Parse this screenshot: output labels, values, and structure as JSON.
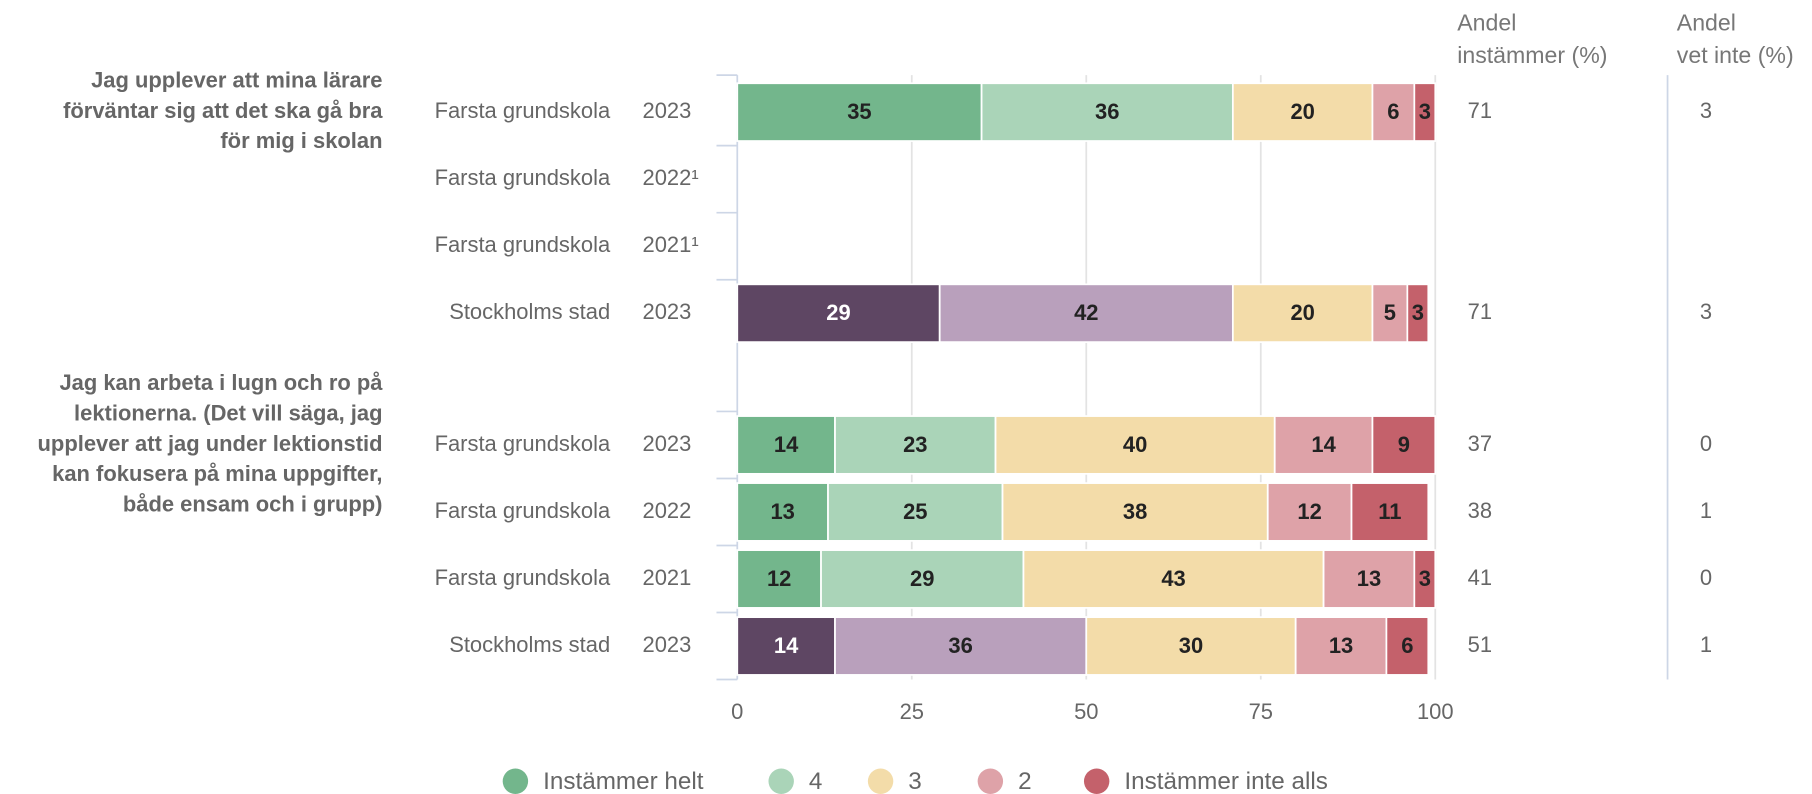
{
  "chart_data": {
    "type": "bar",
    "orientation": "horizontal",
    "stacked": true,
    "groups": [
      {
        "lines": [
          "Jag upplever att mina lärare",
          "förväntar sig att det ska gå bra",
          "för mig i skolan"
        ]
      },
      {
        "lines": [
          "Jag kan arbeta i lugn och ro på",
          "lektionerna. (Det vill säga, jag",
          "upplever att jag under lektionstid",
          "kan fokusera på mina uppgifter,",
          "både ensam och i grupp)"
        ]
      }
    ],
    "rows": [
      {
        "group": 0,
        "label": "Farsta grundskola",
        "year": "2023",
        "alt": false
      },
      {
        "group": 0,
        "label": "Farsta grundskola",
        "year": "2022¹",
        "alt": false
      },
      {
        "group": 0,
        "label": "Farsta grundskola",
        "year": "2021¹",
        "alt": false
      },
      {
        "group": 0,
        "label": "Stockholms stad",
        "year": "2023",
        "alt": true
      },
      {
        "group": 1,
        "label": "Farsta grundskola",
        "year": "2023",
        "alt": false
      },
      {
        "group": 1,
        "label": "Farsta grundskola",
        "year": "2022",
        "alt": false
      },
      {
        "group": 1,
        "label": "Farsta grundskola",
        "year": "2021",
        "alt": false
      },
      {
        "group": 1,
        "label": "Stockholms stad",
        "year": "2023",
        "alt": true
      }
    ],
    "series": [
      {
        "name": "Instämmer helt",
        "color": "#73b68c",
        "alt_color": "#5e4663",
        "values": [
          35,
          null,
          null,
          29,
          14,
          13,
          12,
          14
        ]
      },
      {
        "name": "4",
        "color": "#aad4b8",
        "alt_color": "#b9a0bc",
        "values": [
          36,
          null,
          null,
          42,
          23,
          25,
          29,
          36
        ]
      },
      {
        "name": "3",
        "color": "#f3dca9",
        "alt_color": "#f3dca9",
        "values": [
          20,
          null,
          null,
          20,
          40,
          38,
          43,
          30
        ]
      },
      {
        "name": "2",
        "color": "#dea2a8",
        "alt_color": "#dea2a8",
        "values": [
          6,
          null,
          null,
          5,
          14,
          12,
          13,
          13
        ]
      },
      {
        "name": "Instämmer inte alls",
        "color": "#c4616b",
        "alt_color": "#c4616b",
        "values": [
          3,
          null,
          null,
          3,
          9,
          11,
          3,
          6
        ]
      }
    ],
    "columns": [
      {
        "title": [
          "Andel",
          "instämmer (%)"
        ],
        "values": [
          71,
          null,
          null,
          71,
          37,
          38,
          41,
          51
        ]
      },
      {
        "title": [
          "Andel",
          "vet inte (%)"
        ],
        "values": [
          3,
          null,
          null,
          3,
          0,
          1,
          0,
          1
        ]
      }
    ],
    "xlim": [
      0,
      100
    ],
    "xticks": [
      0,
      25,
      50,
      75,
      100
    ],
    "grid": true
  }
}
